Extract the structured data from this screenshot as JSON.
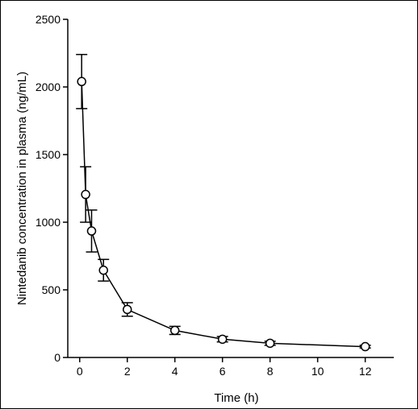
{
  "chart_data": {
    "type": "line",
    "xlabel": "Time (h)",
    "ylabel": "Nintedanib concentration in plasma (ng/mL)",
    "xlim": [
      -0.5,
      13.2
    ],
    "ylim": [
      0,
      2500
    ],
    "xticks": [
      0,
      2,
      4,
      6,
      8,
      10,
      12
    ],
    "yticks": [
      0,
      500,
      1000,
      1500,
      2000,
      2500
    ],
    "grid": false,
    "series": [
      {
        "x": [
          0.083,
          0.25,
          0.5,
          1,
          2,
          4,
          6,
          8,
          12
        ],
        "y": [
          2040,
          1205,
          935,
          645,
          355,
          200,
          135,
          105,
          80
        ],
        "error": [
          200,
          205,
          155,
          80,
          50,
          30,
          20,
          15,
          10
        ]
      }
    ],
    "colors": {
      "line": "#000000",
      "marker_fill": "#ffffff"
    }
  }
}
